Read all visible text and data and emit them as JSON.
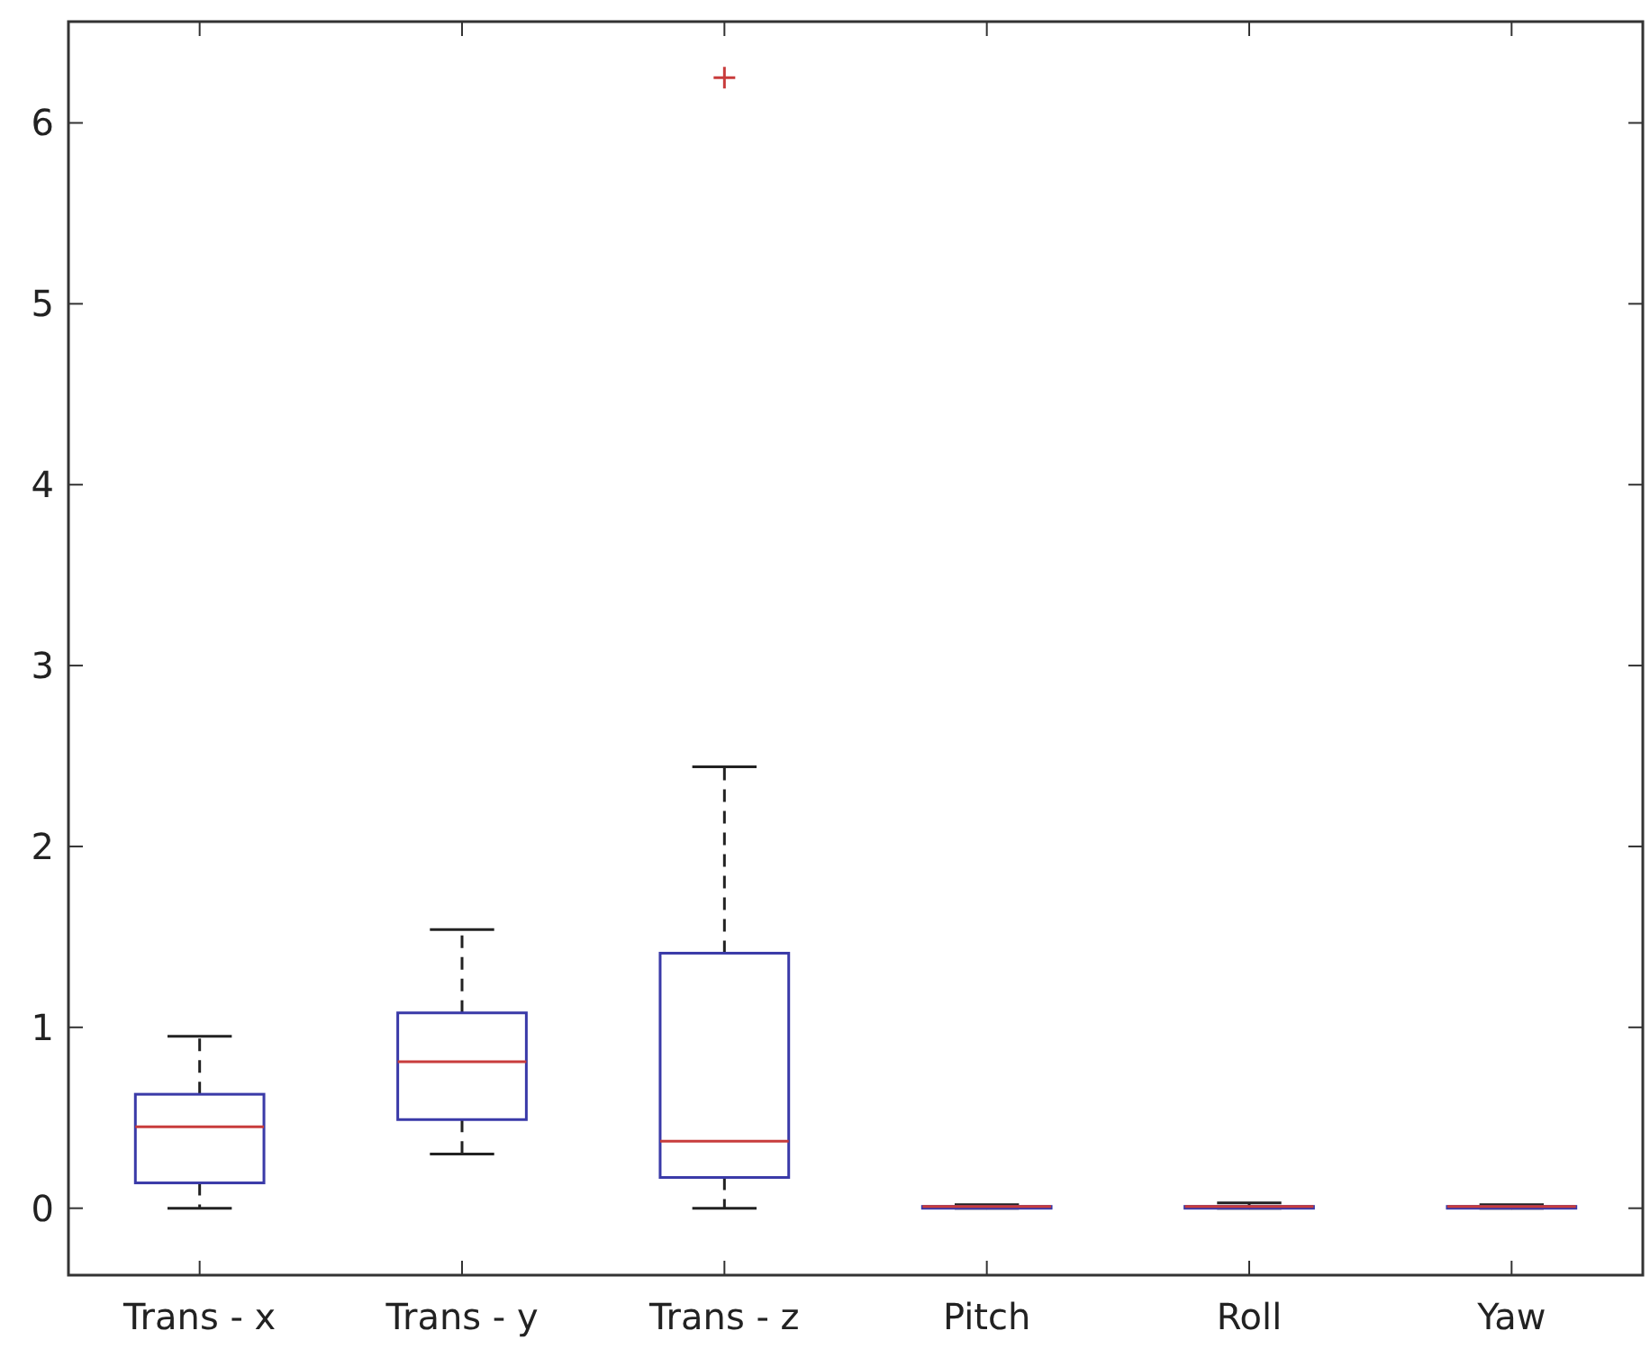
{
  "chart_data": {
    "type": "box",
    "categories": [
      "Trans - x",
      "Trans - y",
      "Trans - z",
      "Pitch",
      "Roll",
      "Yaw"
    ],
    "boxes": [
      {
        "low": 0,
        "q1": 0.14,
        "median": 0.45,
        "q3": 0.63,
        "high": 0.95
      },
      {
        "low": 0.3,
        "q1": 0.49,
        "median": 0.81,
        "q3": 1.08,
        "high": 1.54
      },
      {
        "low": 0,
        "q1": 0.17,
        "median": 0.37,
        "q3": 1.41,
        "high": 2.44,
        "outliers": [
          6.25
        ]
      },
      {
        "low": 0,
        "q1": 0,
        "median": 0.01,
        "q3": 0.01,
        "high": 0.02
      },
      {
        "low": 0,
        "q1": 0,
        "median": 0.01,
        "q3": 0.01,
        "high": 0.03
      },
      {
        "low": 0,
        "q1": 0,
        "median": 0.01,
        "q3": 0.01,
        "high": 0.02
      }
    ],
    "color": "#3a3aa8",
    "marker": "cross",
    "ylim": [
      -0.37,
      6.56
    ],
    "yticks": [
      0,
      1,
      2,
      3,
      4,
      5,
      6
    ],
    "grid": false
  }
}
